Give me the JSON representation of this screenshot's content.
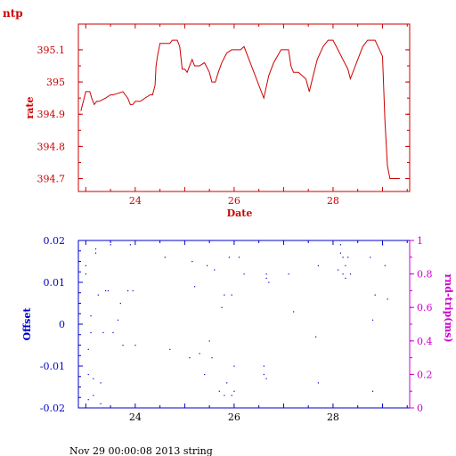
{
  "page": {
    "label": "ntp",
    "footer": "Nov 29 00:00:08 2013 string"
  },
  "colors": {
    "rate": "#cc0000",
    "offset": "#0000cc",
    "rtt": "#cc00cc",
    "frame": "#000000"
  },
  "chart_data": [
    {
      "type": "line",
      "title": "",
      "xlabel": "Date",
      "ylabel": "rate",
      "xlim": [
        22.85,
        29.55
      ],
      "ylim": [
        394.66,
        395.18
      ],
      "xticks": [
        24,
        26,
        28
      ],
      "yticks": [
        394.7,
        394.8,
        394.9,
        395,
        395.1
      ],
      "ytick_labels": [
        "394.7",
        "394.8",
        "394.9",
        "395",
        "395.1"
      ],
      "series": [
        {
          "name": "",
          "x": [
            22.9,
            22.95,
            23.0,
            23.08,
            23.12,
            23.17,
            23.22,
            23.27,
            23.4,
            23.5,
            23.55,
            23.75,
            23.8,
            23.85,
            23.9,
            23.95,
            24.0,
            24.1,
            24.3,
            24.35,
            24.4,
            24.42,
            24.45,
            24.5,
            24.6,
            24.7,
            24.75,
            24.85,
            24.9,
            24.95,
            25.0,
            25.05,
            25.15,
            25.2,
            25.3,
            25.4,
            25.5,
            25.55,
            25.62,
            25.68,
            25.75,
            25.85,
            25.95,
            26.05,
            26.1,
            26.13,
            26.2,
            26.4,
            26.6,
            26.7,
            26.8,
            26.95,
            27.0,
            27.1,
            27.15,
            27.2,
            27.3,
            27.45,
            27.52,
            27.6,
            27.68,
            27.8,
            27.9,
            28.0,
            28.1,
            28.2,
            28.3,
            28.35,
            28.5,
            28.6,
            28.7,
            28.75,
            28.85,
            29.0,
            29.05,
            29.1,
            29.15,
            29.2,
            29.25,
            29.3,
            29.35
          ],
          "y": [
            394.91,
            394.94,
            394.97,
            394.97,
            394.95,
            394.93,
            394.94,
            394.94,
            394.95,
            394.96,
            394.96,
            394.97,
            394.96,
            394.95,
            394.93,
            394.93,
            394.94,
            394.94,
            394.96,
            394.96,
            394.99,
            395.05,
            395.08,
            395.12,
            395.12,
            395.12,
            395.13,
            395.13,
            395.11,
            395.04,
            395.04,
            395.03,
            395.07,
            395.05,
            395.05,
            395.06,
            395.03,
            395.0,
            395.0,
            395.03,
            395.06,
            395.09,
            395.1,
            395.1,
            395.1,
            395.1,
            395.11,
            395.03,
            394.95,
            395.02,
            395.06,
            395.1,
            395.1,
            395.1,
            395.05,
            395.03,
            395.03,
            395.01,
            394.97,
            395.02,
            395.07,
            395.11,
            395.13,
            395.13,
            395.1,
            395.07,
            395.04,
            395.01,
            395.07,
            395.11,
            395.13,
            395.13,
            395.13,
            395.08,
            394.88,
            394.74,
            394.7,
            394.7,
            394.7,
            394.7,
            394.7
          ]
        }
      ]
    },
    {
      "type": "scatter",
      "title": "",
      "xlabel": "",
      "ylabel": "Offset",
      "ylabel_right": "rnd-trip(ms)",
      "xlim": [
        22.85,
        29.55
      ],
      "ylim": [
        -0.02,
        0.02
      ],
      "ylim_right": [
        0,
        1
      ],
      "xticks": [
        24,
        26,
        28
      ],
      "yticks": [
        -0.02,
        -0.01,
        0,
        0.01,
        0.02
      ],
      "ytick_labels": [
        "-0.02",
        "-0.01",
        "0",
        "0.01",
        "0.02"
      ],
      "yticks_right": [
        0,
        0.2,
        0.4,
        0.6,
        0.8,
        1
      ],
      "ytick_labels_right": [
        "0",
        "0.2",
        "0.4",
        "0.6",
        "0.8",
        "1"
      ],
      "series": [
        {
          "name": "",
          "x": [
            23.0,
            23.0,
            23.05,
            23.05,
            23.05,
            23.1,
            23.1,
            23.15,
            23.15,
            23.2,
            23.2,
            23.25,
            23.3,
            23.3,
            23.35,
            23.4,
            23.45,
            23.5,
            23.55,
            23.65,
            23.7,
            23.75,
            23.85,
            23.9,
            23.95,
            24.0,
            24.6,
            24.7,
            25.1,
            25.15,
            25.2,
            25.3,
            25.4,
            25.45,
            25.5,
            25.55,
            25.6,
            25.7,
            25.75,
            25.8,
            25.8,
            25.85,
            25.9,
            25.95,
            25.95,
            26.0,
            26.0,
            26.1,
            26.2,
            26.6,
            26.6,
            26.65,
            26.65,
            26.65,
            26.7,
            27.1,
            27.2,
            27.65,
            27.7,
            27.7,
            28.1,
            28.15,
            28.15,
            28.2,
            28.2,
            28.25,
            28.25,
            28.3,
            28.35,
            28.75,
            28.8,
            28.8,
            28.85,
            29.0,
            29.05,
            29.1
          ],
          "y": [
            0.014,
            0.012,
            -0.018,
            -0.012,
            -0.006,
            0.002,
            -0.002,
            -0.013,
            -0.017,
            0.018,
            0.017,
            0.007,
            -0.014,
            -0.019,
            -0.002,
            0.008,
            0.008,
            0.019,
            -0.002,
            0.001,
            0.005,
            -0.005,
            0.008,
            0.019,
            0.008,
            -0.005,
            0.016,
            -0.006,
            -0.008,
            0.015,
            0.009,
            -0.007,
            -0.012,
            0.014,
            -0.004,
            -0.008,
            0.013,
            -0.016,
            0.004,
            -0.017,
            0.007,
            -0.014,
            0.016,
            -0.017,
            0.007,
            -0.01,
            -0.016,
            0.016,
            0.012,
            -0.01,
            -0.012,
            -0.013,
            0.011,
            0.012,
            0.01,
            0.012,
            0.003,
            -0.003,
            -0.014,
            0.014,
            0.013,
            0.019,
            0.017,
            0.016,
            0.012,
            0.014,
            0.011,
            0.016,
            0.012,
            0.016,
            -0.016,
            0.001,
            0.007,
            0.019,
            0.014,
            0.006
          ]
        }
      ]
    }
  ]
}
